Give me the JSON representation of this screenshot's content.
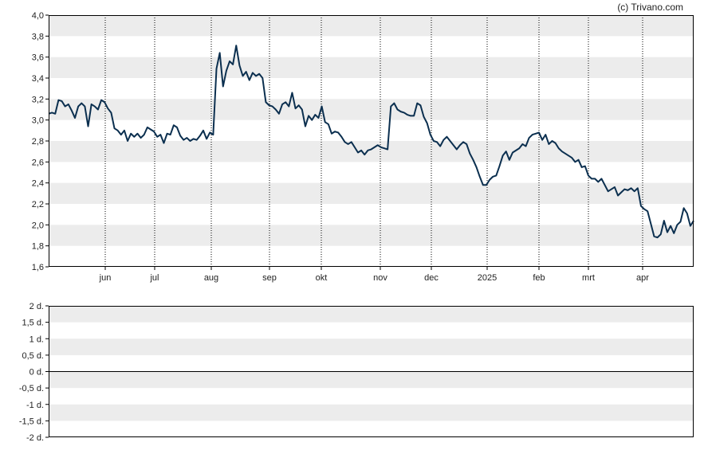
{
  "copyright": "(c) Trivano.com",
  "colors": {
    "line": "#0b2f4f",
    "band": "#ececec",
    "frame": "#000000",
    "vgrid": "#000000"
  },
  "chart_data": [
    {
      "type": "line",
      "title": "",
      "xlabel": "",
      "ylabel": "",
      "x_tick_labels": [
        "jun",
        "jul",
        "aug",
        "sep",
        "okt",
        "nov",
        "dec",
        "2025",
        "feb",
        "mrt",
        "apr"
      ],
      "y_tick_labels": [
        "1,6",
        "1,8",
        "2,0",
        "2,2",
        "2,4",
        "2,6",
        "2,8",
        "3,0",
        "3,2",
        "3,4",
        "3,6",
        "3,8",
        "4,0"
      ],
      "ylim": [
        1.6,
        4.0
      ],
      "grid": "vertical dotted at month starts, alternating horizontal bands",
      "series": [
        {
          "values": [
            3.06,
            3.07,
            3.06,
            3.19,
            3.18,
            3.13,
            3.15,
            3.09,
            3.02,
            3.13,
            3.16,
            3.13,
            2.94,
            3.15,
            3.13,
            3.1,
            3.19,
            3.17,
            3.11,
            3.07,
            2.92,
            2.9,
            2.86,
            2.9,
            2.8,
            2.87,
            2.84,
            2.87,
            2.83,
            2.86,
            2.93,
            2.91,
            2.89,
            2.84,
            2.86,
            2.78,
            2.87,
            2.86,
            2.95,
            2.93,
            2.85,
            2.81,
            2.83,
            2.8,
            2.82,
            2.81,
            2.85,
            2.9,
            2.82,
            2.88,
            2.86,
            3.49,
            3.64,
            3.32,
            3.47,
            3.56,
            3.53,
            3.71,
            3.52,
            3.42,
            3.46,
            3.38,
            3.45,
            3.42,
            3.44,
            3.4,
            3.17,
            3.14,
            3.13,
            3.1,
            3.06,
            3.15,
            3.17,
            3.13,
            3.26,
            3.11,
            3.14,
            3.1,
            2.94,
            3.04,
            3.0,
            3.05,
            3.02,
            3.13,
            2.98,
            2.96,
            2.87,
            2.89,
            2.88,
            2.84,
            2.79,
            2.77,
            2.79,
            2.74,
            2.69,
            2.71,
            2.67,
            2.71,
            2.72,
            2.74,
            2.76,
            2.74,
            2.73,
            2.72,
            3.13,
            3.16,
            3.1,
            3.08,
            3.07,
            3.05,
            3.04,
            3.04,
            3.16,
            3.14,
            3.03,
            2.97,
            2.86,
            2.8,
            2.79,
            2.75,
            2.81,
            2.84,
            2.8,
            2.76,
            2.72,
            2.76,
            2.79,
            2.77,
            2.68,
            2.62,
            2.55,
            2.46,
            2.38,
            2.38,
            2.43,
            2.46,
            2.47,
            2.56,
            2.66,
            2.7,
            2.62,
            2.69,
            2.71,
            2.73,
            2.77,
            2.75,
            2.83,
            2.86,
            2.87,
            2.88,
            2.81,
            2.86,
            2.77,
            2.8,
            2.78,
            2.73,
            2.7,
            2.68,
            2.66,
            2.64,
            2.6,
            2.62,
            2.55,
            2.56,
            2.47,
            2.44,
            2.44,
            2.41,
            2.44,
            2.38,
            2.32,
            2.34,
            2.36,
            2.28,
            2.31,
            2.34,
            2.33,
            2.35,
            2.32,
            2.35,
            2.18,
            2.15,
            2.13,
            2.01,
            1.89,
            1.88,
            1.91,
            2.04,
            1.93,
            1.99,
            1.92,
            2.0,
            2.03,
            2.16,
            2.11,
            1.99,
            2.04
          ]
        }
      ]
    },
    {
      "type": "bar",
      "title": "",
      "xlabel": "",
      "ylabel": "",
      "y_tick_labels": [
        "2 d.",
        "1,5 d.",
        "1 d.",
        "0,5 d.",
        "0 d.",
        "-0,5 d.",
        "-1 d.",
        "-1,5 d.",
        "-2 d."
      ],
      "ylim": [
        -2,
        2
      ],
      "series": []
    }
  ]
}
